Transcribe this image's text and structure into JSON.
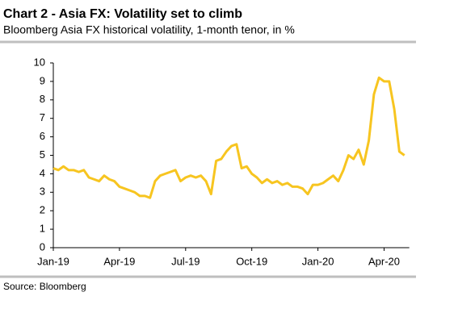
{
  "chart_data": {
    "type": "line",
    "title": "Chart 2 - Asia FX: Volatility set to climb",
    "subtitle": "Bloomberg Asia FX historical volatility, 1-month tenor, in %",
    "source": "Source: Bloomberg",
    "categories": [
      "Jan-19",
      null,
      null,
      null,
      null,
      null,
      null,
      null,
      null,
      null,
      null,
      null,
      null,
      "Apr-19",
      null,
      null,
      null,
      null,
      null,
      null,
      null,
      null,
      null,
      null,
      null,
      null,
      "Jul-19",
      null,
      null,
      null,
      null,
      null,
      null,
      null,
      null,
      null,
      null,
      null,
      null,
      "Oct-19",
      null,
      null,
      null,
      null,
      null,
      null,
      null,
      null,
      null,
      null,
      null,
      null,
      "Jan-20",
      null,
      null,
      null,
      null,
      null,
      null,
      null,
      null,
      null,
      null,
      null,
      null,
      "Apr-20",
      null,
      null,
      null,
      null
    ],
    "series": [
      {
        "name": "Bloomberg Asia FX historical volatility",
        "color": "#f7c520",
        "values": [
          4.3,
          4.2,
          4.4,
          4.2,
          4.2,
          4.1,
          4.2,
          3.8,
          3.7,
          3.6,
          3.9,
          3.7,
          3.6,
          3.3,
          3.2,
          3.1,
          3.0,
          2.8,
          2.8,
          2.7,
          3.6,
          3.9,
          4.0,
          4.1,
          4.2,
          3.6,
          3.8,
          3.9,
          3.8,
          3.9,
          3.6,
          2.9,
          4.7,
          4.8,
          5.2,
          5.5,
          5.6,
          4.3,
          4.4,
          4.0,
          3.8,
          3.5,
          3.7,
          3.5,
          3.6,
          3.4,
          3.5,
          3.3,
          3.3,
          3.2,
          2.9,
          3.4,
          3.4,
          3.5,
          3.7,
          3.9,
          3.6,
          4.2,
          5.0,
          4.8,
          5.3,
          4.5,
          5.8,
          8.3,
          9.2,
          9.0,
          9.0,
          7.5,
          5.2,
          5.0
        ]
      }
    ],
    "ylim": [
      0,
      10
    ],
    "yticks": [
      0,
      1,
      2,
      3,
      4,
      5,
      6,
      7,
      8,
      9,
      10
    ],
    "grid": false
  }
}
